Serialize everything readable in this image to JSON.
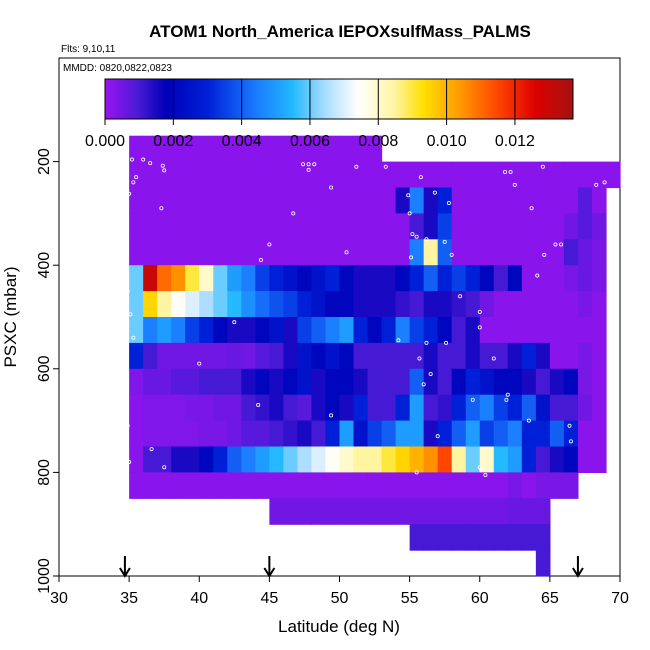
{
  "chart_data": {
    "type": "heatmap",
    "title": "ATOM1 North_America IEPOXsulfMass_PALMS",
    "flights_label": "Flts: 9,10,11",
    "dates_label": "MMDD: 0820,0822,0823",
    "xlabel": "Latitude (deg N)",
    "ylabel": "PSXC (mbar)",
    "xlim": [
      30,
      70
    ],
    "ylim": [
      1000,
      0
    ],
    "x_ticks": [
      30,
      35,
      40,
      45,
      50,
      55,
      60,
      65,
      70
    ],
    "y_ticks": [
      200,
      400,
      600,
      800,
      1000
    ],
    "colorbar": {
      "min": 0.0,
      "max": 0.0137,
      "ticks": [
        0.0,
        0.002,
        0.004,
        0.006,
        0.008,
        0.01,
        0.012
      ],
      "tick_labels": [
        "0.000",
        "0.002",
        "0.004",
        "0.006",
        "0.008",
        "0.010",
        "0.012"
      ]
    },
    "bins": {
      "lat_start": 35,
      "lat_step": 1,
      "p_start": 150,
      "p_step": 50
    },
    "grid": [
      [
        0.0002,
        0.0002,
        0.0002,
        0.0002,
        0.0002,
        0.0002,
        0.0002,
        0.0002,
        0.0002,
        0.0002,
        0.0002,
        0.0002,
        0.0002,
        0.0002,
        0.0002,
        0.0002,
        0.0002,
        0.0002,
        null,
        null,
        null,
        null,
        null,
        null,
        null,
        null,
        null,
        null,
        null,
        null,
        null,
        null,
        null,
        null,
        null
      ],
      [
        0.0002,
        0.0002,
        0.0002,
        0.0002,
        0.0002,
        0.0002,
        0.0002,
        0.0002,
        0.0002,
        0.0002,
        0.0002,
        0.0002,
        0.0002,
        0.0002,
        0.0002,
        0.0002,
        0.0002,
        0.0002,
        0.0002,
        0.0002,
        0.0002,
        0.0002,
        0.0002,
        0.0002,
        0.0002,
        0.0002,
        0.0002,
        0.0002,
        0.0002,
        0.0002,
        0.0002,
        0.0002,
        0.0002,
        0.0002,
        0.0002
      ],
      [
        0.0002,
        0.0002,
        0.0002,
        0.0002,
        0.0002,
        0.0002,
        0.0002,
        0.0002,
        0.0002,
        0.0002,
        0.0002,
        0.0002,
        0.0002,
        0.0002,
        0.0002,
        0.0002,
        0.0002,
        0.0002,
        0.0002,
        0.0015,
        0.0045,
        0.0015,
        0.003,
        0.0002,
        0.0002,
        0.0002,
        0.0002,
        0.0002,
        0.0002,
        0.0002,
        0.0002,
        0.0002,
        0.0008,
        0.0002,
        null
      ],
      [
        0.0002,
        0.0002,
        0.0002,
        0.0002,
        0.0002,
        0.0002,
        0.0002,
        0.0002,
        0.0002,
        0.0002,
        0.0002,
        0.0002,
        0.0002,
        0.0002,
        0.0002,
        0.0002,
        0.0002,
        0.0002,
        0.0002,
        0.0002,
        0.001,
        0.0015,
        0.0035,
        0.0002,
        0.0002,
        0.0002,
        0.0002,
        0.0002,
        0.0002,
        0.0002,
        0.0002,
        0.0005,
        0.0008,
        0.0005,
        null
      ],
      [
        0.0002,
        0.0002,
        0.0002,
        0.0002,
        0.0002,
        0.0002,
        0.0002,
        0.0002,
        0.0002,
        0.0002,
        0.0002,
        0.0002,
        0.0002,
        0.0002,
        0.0002,
        0.0002,
        0.0002,
        0.0002,
        0.0002,
        0.0002,
        0.0045,
        0.0085,
        0.004,
        0.0002,
        0.0002,
        0.0002,
        0.0002,
        0.0002,
        0.0002,
        0.0002,
        0.0002,
        0.001,
        0.0006,
        0.0004,
        null
      ],
      [
        0.006,
        0.013,
        0.011,
        0.0105,
        0.009,
        0.008,
        0.006,
        0.005,
        0.0045,
        0.0035,
        0.003,
        0.0025,
        0.002,
        0.0025,
        0.003,
        0.002,
        0.0015,
        0.0015,
        0.0015,
        0.002,
        0.003,
        0.004,
        0.003,
        0.0035,
        0.003,
        0.002,
        0.001,
        0.002,
        0.0002,
        0.0002,
        0.0002,
        0.0004,
        0.0006,
        0.0004,
        null
      ],
      [
        0.006,
        0.0095,
        0.0085,
        0.0075,
        0.007,
        0.0065,
        0.006,
        0.0055,
        0.0048,
        0.0042,
        0.0038,
        0.0035,
        0.003,
        0.0025,
        0.002,
        0.002,
        0.0015,
        0.0015,
        0.0015,
        0.0012,
        0.001,
        0.0015,
        0.0015,
        0.0012,
        0.001,
        0.0005,
        0.0002,
        0.0002,
        0.0002,
        0.0002,
        0.0002,
        0.0002,
        0.0004,
        0.0002,
        null
      ],
      [
        0.006,
        0.0045,
        0.005,
        0.0045,
        0.0035,
        0.003,
        0.002,
        0.0015,
        0.0015,
        0.002,
        0.0025,
        0.0015,
        0.0035,
        0.004,
        0.0045,
        0.005,
        0.003,
        0.002,
        0.003,
        0.0045,
        0.0035,
        0.003,
        0.002,
        0.001,
        0.0015,
        0.0002,
        0.0002,
        0.0002,
        0.0002,
        0.0002,
        0.0002,
        0.0002,
        0.0002,
        0.0002,
        null
      ],
      [
        0.003,
        0.001,
        0.0005,
        0.0005,
        0.0005,
        0.0005,
        0.0005,
        0.0006,
        0.0005,
        0.0008,
        0.001,
        0.0015,
        0.0025,
        0.002,
        0.0025,
        0.002,
        0.001,
        0.001,
        0.001,
        0.001,
        0.001,
        0.0015,
        0.001,
        0.001,
        0.0015,
        0.001,
        0.001,
        0.0015,
        0.003,
        0.0015,
        0.0002,
        0.0002,
        0.0004,
        0.0002,
        null
      ],
      [
        0.0003,
        0.0006,
        0.0006,
        0.0008,
        0.0008,
        0.001,
        0.001,
        0.001,
        0.0015,
        0.002,
        0.0015,
        0.002,
        0.0025,
        0.0015,
        0.002,
        0.002,
        0.0015,
        0.001,
        0.001,
        0.001,
        0.004,
        0.0015,
        0.001,
        0.002,
        0.003,
        0.0025,
        0.002,
        0.002,
        0.0015,
        0.001,
        0.0015,
        0.002,
        0.0004,
        0.0002,
        null
      ],
      [
        0.0002,
        0.0003,
        0.0003,
        0.0003,
        0.0004,
        0.0004,
        0.0005,
        0.0005,
        0.001,
        0.0012,
        0.0015,
        0.001,
        0.0008,
        0.0015,
        0.002,
        0.0015,
        0.003,
        0.001,
        0.001,
        0.003,
        0.005,
        0.001,
        0.0012,
        0.003,
        0.004,
        0.0045,
        0.0035,
        0.003,
        0.004,
        0.0025,
        0.001,
        0.001,
        0.0005,
        0.0002,
        null
      ],
      [
        0.0002,
        0.0003,
        0.0003,
        0.0003,
        0.0003,
        0.0004,
        0.0004,
        0.0005,
        0.0008,
        0.0008,
        0.001,
        0.0012,
        0.0015,
        0.001,
        0.003,
        0.005,
        0.0025,
        0.0035,
        0.004,
        0.005,
        0.005,
        0.0015,
        0.003,
        0.004,
        0.005,
        0.0035,
        0.004,
        0.0045,
        0.003,
        0.003,
        0.004,
        0.003,
        0.0002,
        0.0002,
        null
      ],
      [
        0.0002,
        0.001,
        0.001,
        0.0015,
        0.0015,
        0.002,
        0.003,
        0.004,
        0.0045,
        0.005,
        0.0055,
        0.006,
        0.0065,
        0.007,
        0.0075,
        0.008,
        0.0085,
        0.0085,
        0.009,
        0.0095,
        0.01,
        0.0105,
        0.0115,
        0.0085,
        0.006,
        0.008,
        0.0055,
        0.005,
        0.003,
        0.001,
        0.0015,
        0.002,
        0.0002,
        0.0002,
        null
      ],
      [
        0.0002,
        0.0002,
        0.0002,
        0.0002,
        0.0002,
        0.0002,
        0.0002,
        0.0002,
        0.0002,
        0.0002,
        0.0002,
        0.0002,
        0.0002,
        0.0002,
        0.0002,
        0.0002,
        0.0002,
        0.0002,
        0.0002,
        0.0002,
        0.0002,
        0.0002,
        0.0002,
        0.0002,
        0.0002,
        0.0002,
        0.0002,
        0.0004,
        0.0002,
        0.0004,
        0.0004,
        0.0004,
        null,
        null,
        null
      ],
      [
        null,
        null,
        null,
        null,
        null,
        null,
        null,
        null,
        null,
        null,
        0.0005,
        0.0005,
        0.0005,
        0.0005,
        0.0005,
        0.0005,
        0.0005,
        0.0005,
        0.0005,
        0.0005,
        0.0005,
        0.0005,
        0.0005,
        0.0005,
        0.0005,
        0.0005,
        0.0005,
        0.0006,
        0.0006,
        0.0006,
        null,
        null,
        null,
        null,
        null
      ],
      [
        null,
        null,
        null,
        null,
        null,
        null,
        null,
        null,
        null,
        null,
        null,
        null,
        null,
        null,
        null,
        null,
        null,
        null,
        null,
        null,
        0.001,
        0.001,
        0.001,
        0.001,
        0.001,
        0.001,
        0.001,
        0.001,
        0.001,
        0.001,
        null,
        null,
        null,
        null,
        null
      ],
      [
        null,
        null,
        null,
        null,
        null,
        null,
        null,
        null,
        null,
        null,
        null,
        null,
        null,
        null,
        null,
        null,
        null,
        null,
        null,
        null,
        null,
        null,
        null,
        null,
        null,
        null,
        null,
        null,
        null,
        0.001,
        null,
        null,
        null,
        null,
        null
      ]
    ],
    "flight_track_points": [
      [
        35.2,
        196
      ],
      [
        36.0,
        196
      ],
      [
        36.5,
        203
      ],
      [
        37.4,
        208
      ],
      [
        37.5,
        217
      ],
      [
        35.5,
        230
      ],
      [
        35.3,
        240
      ],
      [
        34.7,
        248
      ],
      [
        35.0,
        262
      ],
      [
        37.3,
        290
      ],
      [
        34.7,
        370
      ],
      [
        34.8,
        388
      ],
      [
        34.8,
        410
      ],
      [
        34.9,
        450
      ],
      [
        35.1,
        495
      ],
      [
        35.3,
        540
      ],
      [
        45.0,
        360
      ],
      [
        46.7,
        300
      ],
      [
        44.4,
        390
      ],
      [
        49.4,
        250
      ],
      [
        44.2,
        670
      ],
      [
        47.8,
        205
      ],
      [
        47.4,
        205
      ],
      [
        48.2,
        205
      ],
      [
        51.2,
        210
      ],
      [
        53.3,
        210
      ],
      [
        55.0,
        300
      ],
      [
        55.8,
        230
      ],
      [
        56.8,
        260
      ],
      [
        57.8,
        280
      ],
      [
        58.6,
        460
      ],
      [
        60.0,
        490
      ],
      [
        58.0,
        380
      ],
      [
        55.5,
        345
      ],
      [
        56.2,
        350
      ],
      [
        57.5,
        355
      ],
      [
        61.8,
        220
      ],
      [
        62.2,
        220
      ],
      [
        62.5,
        245
      ],
      [
        63.7,
        290
      ],
      [
        64.1,
        420
      ],
      [
        64.6,
        380
      ],
      [
        54.9,
        265
      ],
      [
        55.2,
        340
      ],
      [
        54.2,
        545
      ],
      [
        55.7,
        580
      ],
      [
        56.5,
        610
      ],
      [
        59.5,
        660
      ],
      [
        60.0,
        520
      ],
      [
        61.0,
        580
      ],
      [
        63.5,
        700
      ],
      [
        65.8,
        360
      ],
      [
        65.4,
        360
      ],
      [
        66.5,
        740
      ],
      [
        68.3,
        245
      ],
      [
        68.9,
        240
      ],
      [
        64.5,
        210
      ],
      [
        66.4,
        710
      ],
      [
        36.6,
        755
      ],
      [
        37.5,
        790
      ],
      [
        35.0,
        780
      ],
      [
        34.9,
        710
      ],
      [
        34.8,
        670
      ],
      [
        34.6,
        690
      ],
      [
        56.0,
        630
      ],
      [
        49.4,
        690
      ],
      [
        55.1,
        385
      ],
      [
        47.8,
        216
      ],
      [
        50.5,
        375
      ],
      [
        40.0,
        590
      ],
      [
        42.5,
        510
      ],
      [
        57.0,
        730
      ],
      [
        60.1,
        795
      ],
      [
        60.0,
        790
      ],
      [
        60.4,
        805
      ],
      [
        56.2,
        550
      ],
      [
        57.6,
        550
      ],
      [
        55.5,
        800
      ],
      [
        62.0,
        650
      ],
      [
        61.9,
        660
      ]
    ],
    "flight_profile_markers_lat": [
      34.7,
      45.0,
      67.0
    ]
  }
}
